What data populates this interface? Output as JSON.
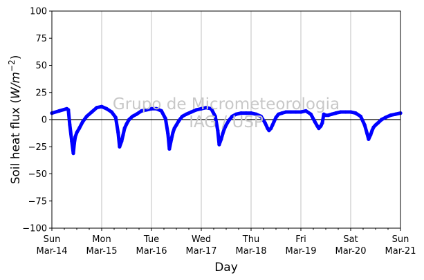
{
  "chart_data": {
    "type": "line",
    "xlabel": "Day",
    "ylabel_text": "Soil heat flux (",
    "ylabel_unit": "W/m",
    "ylabel_exp": "−2",
    "ylabel_close": ")",
    "ylim": [
      -100,
      100
    ],
    "xlim": [
      0,
      7
    ],
    "x_unit": "days since Sun Mar-14 00:00",
    "yticks": [
      -100,
      -75,
      -50,
      -25,
      0,
      25,
      50,
      75,
      100
    ],
    "ytick_labels": [
      "−100",
      "−75",
      "−50",
      "−25",
      "0",
      "25",
      "50",
      "75",
      "100"
    ],
    "xticks": [
      {
        "day": "Sun",
        "date": "Mar-14"
      },
      {
        "day": "Mon",
        "date": "Mar-15"
      },
      {
        "day": "Tue",
        "date": "Mar-16"
      },
      {
        "day": "Wed",
        "date": "Mar-17"
      },
      {
        "day": "Thu",
        "date": "Mar-18"
      },
      {
        "day": "Fri",
        "date": "Mar-19"
      },
      {
        "day": "Sat",
        "date": "Mar-20"
      },
      {
        "day": "Sun",
        "date": "Mar-21"
      }
    ],
    "grid": "vertical",
    "zero_line": true,
    "watermark": [
      "Grupo de Micrometeorologia",
      "IAG / USP"
    ],
    "series": [
      {
        "color": "#0000ff",
        "x": [
          0,
          0.15,
          0.3,
          0.33,
          0.36,
          0.4,
          0.43,
          0.45,
          0.47,
          0.5,
          0.55,
          0.62,
          0.7,
          0.8,
          0.9,
          1.0,
          1.1,
          1.2,
          1.28,
          1.33,
          1.36,
          1.4,
          1.43,
          1.46,
          1.5,
          1.55,
          1.62,
          1.7,
          1.8,
          1.9,
          2.0,
          2.1,
          2.2,
          2.28,
          2.33,
          2.36,
          2.4,
          2.43,
          2.46,
          2.5,
          2.55,
          2.62,
          2.7,
          2.8,
          2.9,
          3.0,
          3.1,
          3.2,
          3.28,
          3.33,
          3.36,
          3.4,
          3.43,
          3.46,
          3.5,
          3.55,
          3.62,
          3.7,
          3.8,
          3.9,
          4.0,
          4.1,
          4.2,
          4.28,
          4.33,
          4.36,
          4.4,
          4.43,
          4.46,
          4.5,
          4.55,
          4.62,
          4.7,
          4.8,
          4.9,
          5.0,
          5.1,
          5.2,
          5.28,
          5.33,
          5.36,
          5.4,
          5.43,
          5.46,
          5.5,
          5.55,
          5.62,
          5.7,
          5.8,
          5.9,
          6.0,
          6.1,
          6.2,
          6.28,
          6.33,
          6.36,
          6.4,
          6.43,
          6.46,
          6.5,
          6.55,
          6.62,
          6.7,
          6.8,
          6.9,
          7.0
        ],
        "y": [
          6,
          8,
          10,
          9,
          -5,
          -20,
          -31,
          -22,
          -16,
          -12,
          -8,
          -2,
          3,
          7,
          11,
          12,
          10,
          7,
          2,
          -12,
          -25,
          -20,
          -14,
          -8,
          -4,
          0,
          3,
          5,
          8,
          9,
          10,
          10,
          8,
          1,
          -13,
          -27,
          -18,
          -12,
          -8,
          -5,
          -1,
          3,
          5,
          7,
          9,
          10,
          11,
          10,
          3,
          -10,
          -23,
          -18,
          -13,
          -9,
          -5,
          -1,
          3,
          5,
          6,
          6,
          6,
          5,
          3,
          -3,
          -8,
          -10,
          -8,
          -5,
          -2,
          2,
          5,
          6,
          7,
          7,
          7,
          7,
          8,
          5,
          -2,
          -6,
          -8,
          -6,
          -3,
          5,
          4,
          4,
          5,
          6,
          7,
          7,
          7,
          6,
          3,
          -5,
          -13,
          -18,
          -14,
          -10,
          -7,
          -5,
          -3,
          0,
          2,
          4,
          5,
          6
        ]
      }
    ]
  }
}
